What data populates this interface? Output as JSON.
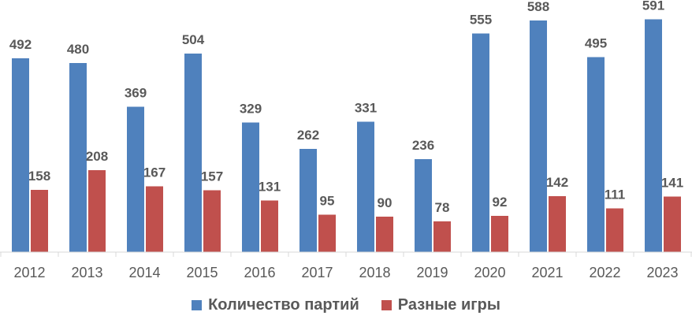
{
  "chart_data": {
    "type": "bar",
    "categories": [
      "2012",
      "2013",
      "2014",
      "2015",
      "2016",
      "2017",
      "2018",
      "2019",
      "2020",
      "2021",
      "2022",
      "2023"
    ],
    "series": [
      {
        "name": "Количество партий",
        "color": "#4F81BD",
        "values": [
          492,
          480,
          369,
          504,
          329,
          262,
          331,
          236,
          555,
          588,
          495,
          591
        ]
      },
      {
        "name": "Разные игры",
        "color": "#C0504D",
        "values": [
          158,
          208,
          167,
          157,
          131,
          95,
          90,
          78,
          92,
          142,
          111,
          141
        ]
      }
    ],
    "title": "",
    "xlabel": "",
    "ylabel": "",
    "ylim": [
      0,
      640
    ],
    "grid": false,
    "data_labels": true,
    "legend_position": "bottom",
    "axis_label_color": "#595959",
    "data_label_color": "#595959",
    "axis_line_color": "#D9D9D9"
  }
}
